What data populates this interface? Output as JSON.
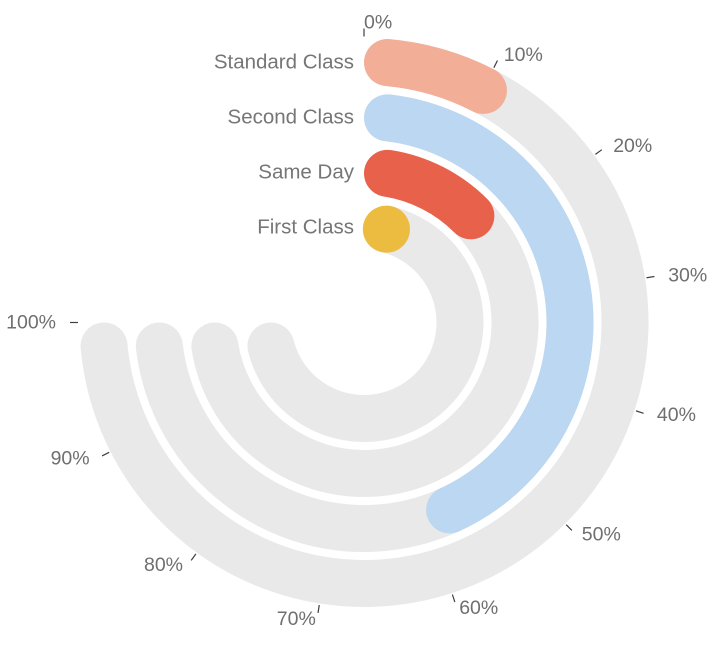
{
  "chart_data": {
    "type": "bar",
    "layout": "radial",
    "title": "",
    "categories": [
      "Standard Class",
      "Second Class",
      "Same Day",
      "First Class"
    ],
    "values": [
      12,
      60,
      20,
      10
    ],
    "unit": "%",
    "axis": {
      "min": 0,
      "max": 100,
      "tick_step": 10,
      "tick_labels": [
        "0%",
        "10%",
        "20%",
        "30%",
        "40%",
        "50%",
        "60%",
        "70%",
        "80%",
        "90%",
        "100%"
      ],
      "start_angle_deg": 0,
      "sweep_deg": 270,
      "direction": "clockwise",
      "grid": false,
      "legend_position": "ring-start-left"
    },
    "bar_colors": [
      "#F2AE97",
      "#BCD7F1",
      "#E8614B",
      "#EBBC40"
    ],
    "track_color": "#E9E9E9",
    "tick_mark_color": "#3F3F3F",
    "tick_label_color": "#6F6F6F",
    "category_label_color": "#767676",
    "background_color": "#FFFFFF"
  }
}
